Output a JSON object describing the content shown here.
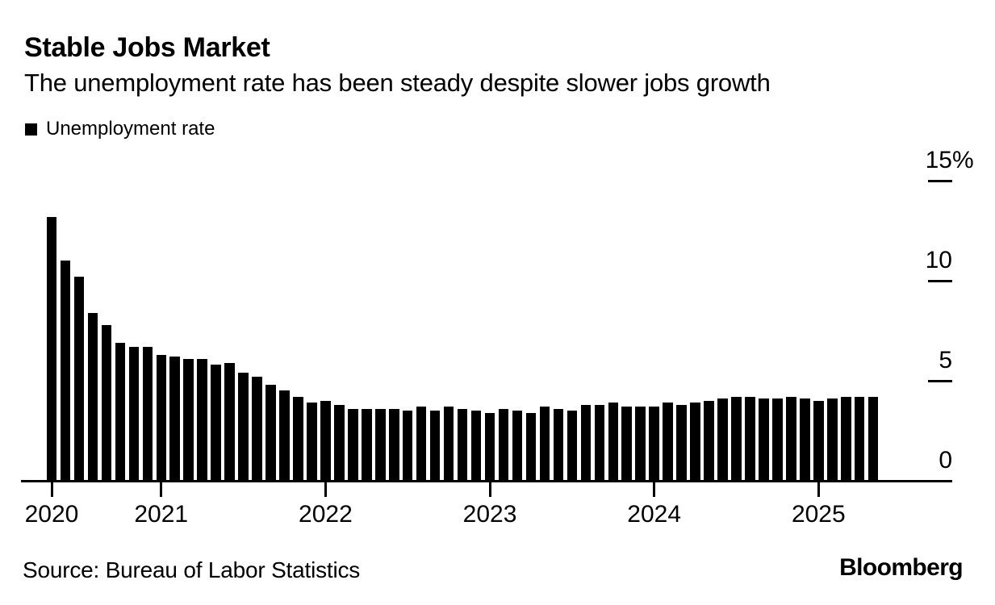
{
  "chart_data": {
    "type": "bar",
    "title": "Stable Jobs Market",
    "subtitle": "The unemployment rate has been steady despite slower jobs growth",
    "legend": {
      "label": "Unemployment rate",
      "swatch_color": "#000000"
    },
    "source": "Source: Bureau of Labor Statistics",
    "brand": "Bloomberg",
    "bar_color": "#000000",
    "grid": false,
    "legend_position": "top-left",
    "y_axis_position": "right",
    "ylabel": "Unemployment rate (%)",
    "ylim": [
      0,
      15
    ],
    "frequency": "monthly",
    "x": [
      "2020-05",
      "2020-06",
      "2020-07",
      "2020-08",
      "2020-09",
      "2020-10",
      "2020-11",
      "2020-12",
      "2021-01",
      "2021-02",
      "2021-03",
      "2021-04",
      "2021-05",
      "2021-06",
      "2021-07",
      "2021-08",
      "2021-09",
      "2021-10",
      "2021-11",
      "2021-12",
      "2022-01",
      "2022-02",
      "2022-03",
      "2022-04",
      "2022-05",
      "2022-06",
      "2022-07",
      "2022-08",
      "2022-09",
      "2022-10",
      "2022-11",
      "2022-12",
      "2023-01",
      "2023-02",
      "2023-03",
      "2023-04",
      "2023-05",
      "2023-06",
      "2023-07",
      "2023-08",
      "2023-09",
      "2023-10",
      "2023-11",
      "2023-12",
      "2024-01",
      "2024-02",
      "2024-03",
      "2024-04",
      "2024-05",
      "2024-06",
      "2024-07",
      "2024-08",
      "2024-09",
      "2024-10",
      "2024-11",
      "2024-12",
      "2025-01",
      "2025-02",
      "2025-03",
      "2025-04",
      "2025-05"
    ],
    "values": [
      13.2,
      11.0,
      10.2,
      8.4,
      7.8,
      6.9,
      6.7,
      6.7,
      6.3,
      6.2,
      6.1,
      6.1,
      5.8,
      5.9,
      5.4,
      5.2,
      4.8,
      4.5,
      4.2,
      3.9,
      4.0,
      3.8,
      3.6,
      3.6,
      3.6,
      3.6,
      3.5,
      3.7,
      3.5,
      3.7,
      3.6,
      3.5,
      3.4,
      3.6,
      3.5,
      3.4,
      3.7,
      3.6,
      3.5,
      3.8,
      3.8,
      3.9,
      3.7,
      3.7,
      3.7,
      3.9,
      3.8,
      3.9,
      4.0,
      4.1,
      4.2,
      4.2,
      4.1,
      4.1,
      4.2,
      4.1,
      4.0,
      4.1,
      4.2,
      4.2,
      4.2
    ],
    "y_ticks": [
      {
        "value": 15,
        "label": "15%"
      },
      {
        "value": 10,
        "label": "10"
      },
      {
        "value": 5,
        "label": "5"
      },
      {
        "value": 0,
        "label": "0"
      }
    ],
    "x_ticks": [
      {
        "label": "2020",
        "index": 0
      },
      {
        "label": "2021",
        "index": 8
      },
      {
        "label": "2022",
        "index": 20
      },
      {
        "label": "2023",
        "index": 32
      },
      {
        "label": "2024",
        "index": 44
      },
      {
        "label": "2025",
        "index": 56
      }
    ]
  }
}
